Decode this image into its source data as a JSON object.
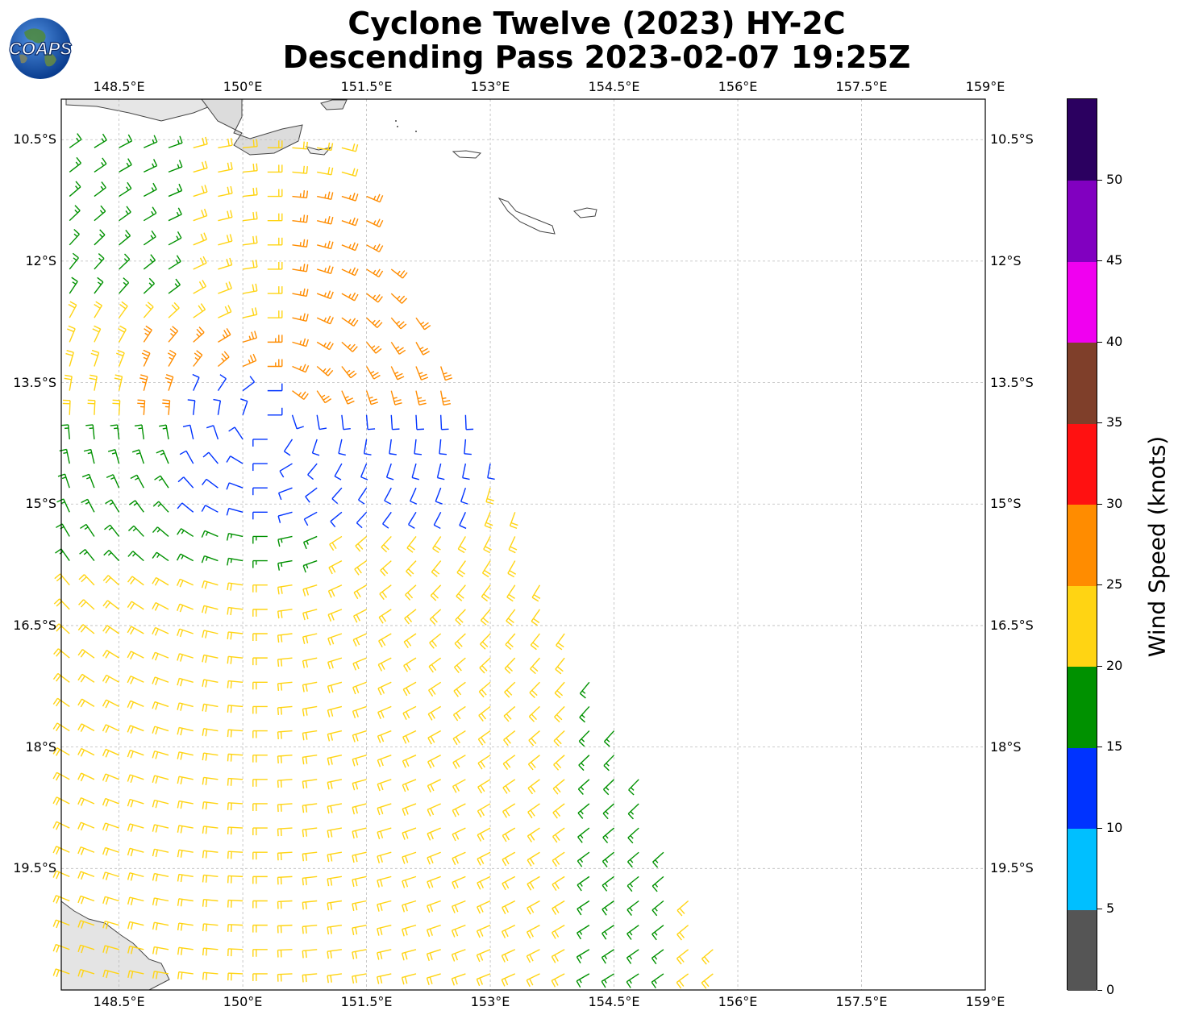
{
  "title_line1": "Cyclone Twelve (2023) HY-2C",
  "title_line2": "Descending Pass 2023-02-07 19:25Z",
  "logo_text": "COAPS",
  "lon_labels": [
    "148.5°E",
    "150°E",
    "151.5°E",
    "153°E",
    "154.5°E",
    "156°E",
    "157.5°E",
    "159°E"
  ],
  "lat_labels": [
    "10.5°S",
    "12°S",
    "13.5°S",
    "15°S",
    "16.5°S",
    "18°S",
    "19.5°S"
  ],
  "colorbar": {
    "title": "Wind Speed (knots)",
    "tick_labels": [
      "0",
      "5",
      "10",
      "15",
      "20",
      "25",
      "30",
      "35",
      "40",
      "45",
      "50"
    ],
    "colors": [
      "#555555",
      "#00bfff",
      "#0033ff",
      "#009100",
      "#ffd413",
      "#ff8c00",
      "#ff1111",
      "#7f3f2a",
      "#f000f0",
      "#8100c0",
      "#2b0060"
    ]
  },
  "chart_data": {
    "type": "wind barb map",
    "lon_range": [
      147.8,
      159
    ],
    "lat_range": [
      -21.0,
      -10.0
    ],
    "units": "knots",
    "swath_edges": "left edge ~147.8°E; right edge runs from ~151.2°E at 10.5°S to ~156°E at 21°S",
    "regions": [
      {
        "area": "north-west (10.5°S–12.5°S, 147.8–149.5°E)",
        "speed_kt": 17
      },
      {
        "area": "central north (10.5°S–13.5°S, 149.5–152°E)",
        "speed_kt": 23
      },
      {
        "area": "band 11°S–13.5°S near 150.5–152°E",
        "speed_kt": 27
      },
      {
        "area": "curved band 13.5°S–15°S, 149.5–153°E",
        "speed_kt": 13
      },
      {
        "area": "14°S–17°S west of 151°E",
        "speed_kt": 17
      },
      {
        "area": "south (16°S–21°S)",
        "speed_kt": 22
      },
      {
        "area": "east edge 18°S–20.5°S, 154–155.5°E",
        "speed_kt": 17
      }
    ]
  }
}
